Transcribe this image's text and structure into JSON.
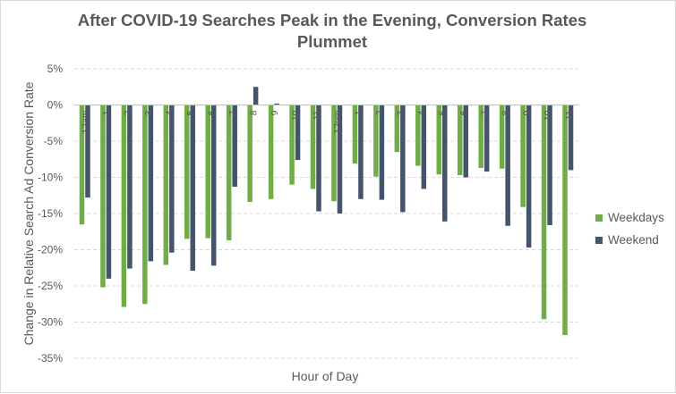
{
  "chart_data": {
    "type": "bar",
    "title": "After COVID-19 Searches Peak in the Evening, Conversion Rates Plummet",
    "xlabel": "Hour of Day",
    "ylabel": "Change in Relative Search Ad Conversion Rate",
    "ylim": [
      -0.35,
      0.05
    ],
    "y_ticks": [
      "5%",
      "0%",
      "-5%",
      "-10%",
      "-15%",
      "-20%",
      "-25%",
      "-30%",
      "-35%"
    ],
    "y_tick_values": [
      0.05,
      0,
      -0.05,
      -0.1,
      -0.15,
      -0.2,
      -0.25,
      -0.3,
      -0.35
    ],
    "grid": true,
    "legend_position": "right",
    "categories": [
      "12am",
      "1",
      "2",
      "3",
      "4",
      "5",
      "6",
      "7",
      "8",
      "9",
      "10",
      "11",
      "12pm",
      "1",
      "2",
      "3",
      "4",
      "5",
      "6",
      "7",
      "8",
      "9",
      "10",
      "11"
    ],
    "series": [
      {
        "name": "Weekdays",
        "color": "#70ad47",
        "values": [
          -0.165,
          -0.252,
          -0.279,
          -0.275,
          -0.221,
          -0.185,
          -0.184,
          -0.187,
          -0.134,
          -0.13,
          -0.11,
          -0.116,
          -0.133,
          -0.081,
          -0.099,
          -0.065,
          -0.084,
          -0.096,
          -0.097,
          -0.087,
          -0.088,
          -0.141,
          -0.296,
          -0.318
        ]
      },
      {
        "name": "Weekend",
        "color": "#44546a",
        "values": [
          -0.128,
          -0.24,
          -0.226,
          -0.216,
          -0.204,
          -0.229,
          -0.222,
          -0.113,
          0.025,
          0.002,
          -0.076,
          -0.147,
          -0.15,
          -0.13,
          -0.131,
          -0.148,
          -0.116,
          -0.161,
          -0.1,
          -0.092,
          -0.167,
          -0.197,
          -0.166,
          -0.09
        ]
      }
    ]
  }
}
